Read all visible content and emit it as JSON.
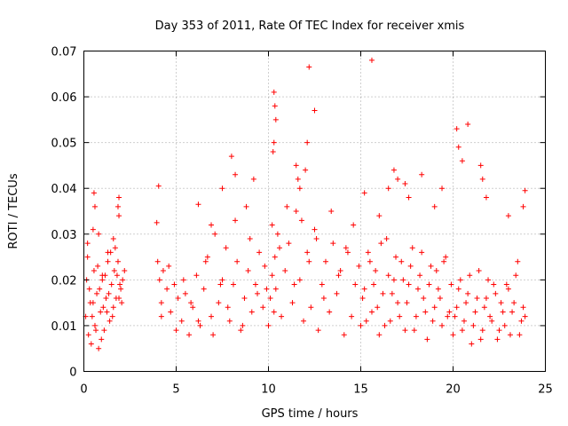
{
  "chart_data": {
    "type": "scatter",
    "title": "Day 353 of 2011, Rate Of TEC Index for receiver xmis",
    "xlabel": "GPS time / hours",
    "ylabel": "ROTI / TECUs",
    "xlim": [
      0,
      25
    ],
    "ylim": [
      0,
      0.07
    ],
    "x_ticks": [
      0,
      5,
      10,
      15,
      20,
      25
    ],
    "y_ticks": [
      0,
      0.01,
      0.02,
      0.03,
      0.04,
      0.05,
      0.06,
      0.07
    ],
    "x_tick_labels": [
      "0",
      "5",
      "10",
      "15",
      "20",
      "25"
    ],
    "y_tick_labels": [
      "0",
      "0.01",
      "0.02",
      "0.03",
      "0.04",
      "0.05",
      "0.06",
      "0.07"
    ],
    "grid": true,
    "marker": "+",
    "color": "#ff0000",
    "series": [
      {
        "x": [
          0.1,
          0.2,
          0.25,
          0.3,
          0.4,
          0.5,
          0.55,
          0.6,
          0.7,
          0.8,
          0.9,
          1.0,
          1.1,
          1.2,
          1.3,
          1.4,
          1.5,
          1.6,
          1.7,
          1.8,
          1.9,
          2.0,
          2.1,
          2.2,
          0.15,
          0.35,
          0.45,
          0.65,
          0.75,
          0.85,
          0.95,
          1.05,
          1.15,
          1.25,
          1.35,
          1.45,
          1.55,
          1.65,
          1.75,
          1.85,
          1.95,
          2.05,
          0.2,
          0.5,
          0.8,
          1.0,
          1.3,
          1.6,
          1.9,
          0.6,
          0.55,
          1.85,
          1.9,
          4.0,
          4.1,
          4.2,
          4.3,
          4.5,
          4.7,
          4.9,
          5.1,
          5.3,
          5.5,
          5.7,
          5.9,
          6.1,
          6.3,
          6.5,
          6.7,
          6.9,
          7.1,
          7.3,
          7.5,
          7.7,
          7.9,
          8.1,
          8.3,
          8.5,
          8.7,
          8.9,
          9.1,
          9.3,
          9.5,
          9.7,
          9.9,
          4.2,
          4.6,
          5.0,
          5.4,
          5.8,
          6.2,
          6.6,
          7.0,
          7.4,
          7.8,
          8.2,
          8.6,
          9.0,
          9.4,
          9.8,
          4.05,
          3.95,
          6.2,
          6.9,
          7.5,
          8.0,
          8.2,
          8.8,
          9.2,
          10.0,
          10.1,
          10.2,
          10.3,
          10.35,
          10.4,
          10.5,
          10.7,
          10.9,
          11.1,
          11.3,
          11.5,
          11.7,
          11.9,
          12.1,
          12.3,
          12.5,
          12.7,
          12.9,
          13.1,
          13.3,
          13.5,
          13.7,
          13.9,
          14.1,
          14.3,
          14.5,
          14.7,
          14.9,
          10.3,
          10.35,
          10.4,
          10.3,
          10.25,
          12.2,
          12.5,
          12.1,
          12.0,
          11.5,
          11.6,
          11.7,
          10.2,
          10.6,
          11.0,
          11.4,
          11.8,
          12.2,
          12.6,
          13.0,
          13.4,
          13.8,
          14.2,
          14.6,
          15.0,
          15.2,
          15.4,
          15.6,
          15.8,
          16.0,
          16.2,
          16.4,
          16.6,
          16.8,
          17.0,
          17.2,
          17.4,
          17.6,
          17.8,
          18.0,
          18.2,
          18.4,
          18.6,
          18.8,
          19.0,
          19.2,
          19.4,
          19.6,
          19.8,
          15.1,
          15.3,
          15.5,
          15.7,
          15.9,
          16.1,
          16.3,
          16.5,
          16.7,
          16.9,
          17.1,
          17.3,
          17.5,
          17.7,
          17.9,
          18.1,
          18.3,
          18.5,
          18.7,
          18.9,
          19.1,
          19.3,
          19.5,
          19.7,
          19.9,
          15.6,
          16.5,
          17.0,
          17.6,
          18.3,
          19.0,
          19.4,
          15.2,
          16.0,
          16.8,
          17.4,
          20.0,
          20.2,
          20.4,
          20.6,
          20.8,
          21.0,
          21.2,
          21.4,
          21.6,
          21.8,
          22.0,
          22.2,
          22.4,
          22.6,
          22.8,
          23.0,
          23.2,
          23.4,
          23.6,
          23.8,
          23.9,
          20.1,
          20.3,
          20.5,
          20.7,
          20.9,
          21.1,
          21.3,
          21.5,
          21.7,
          21.9,
          22.1,
          22.3,
          22.5,
          22.7,
          22.9,
          23.1,
          23.3,
          23.5,
          23.7,
          20.2,
          20.3,
          20.8,
          20.5,
          21.5,
          21.6,
          21.8,
          23.9,
          23.8,
          23.0
        ],
        "y": [
          0.012,
          0.025,
          0.008,
          0.018,
          0.006,
          0.015,
          0.022,
          0.01,
          0.017,
          0.005,
          0.013,
          0.02,
          0.009,
          0.016,
          0.024,
          0.011,
          0.019,
          0.014,
          0.027,
          0.021,
          0.016,
          0.018,
          0.02,
          0.022,
          0.02,
          0.015,
          0.012,
          0.009,
          0.023,
          0.018,
          0.007,
          0.014,
          0.021,
          0.013,
          0.017,
          0.026,
          0.012,
          0.022,
          0.016,
          0.024,
          0.019,
          0.015,
          0.028,
          0.031,
          0.03,
          0.021,
          0.026,
          0.029,
          0.034,
          0.036,
          0.039,
          0.036,
          0.038,
          0.024,
          0.02,
          0.015,
          0.022,
          0.018,
          0.013,
          0.019,
          0.016,
          0.011,
          0.017,
          0.008,
          0.014,
          0.021,
          0.01,
          0.018,
          0.025,
          0.012,
          0.03,
          0.015,
          0.02,
          0.027,
          0.011,
          0.019,
          0.024,
          0.009,
          0.016,
          0.022,
          0.013,
          0.019,
          0.026,
          0.014,
          0.018,
          0.012,
          0.023,
          0.009,
          0.02,
          0.015,
          0.011,
          0.024,
          0.008,
          0.019,
          0.014,
          0.033,
          0.01,
          0.029,
          0.017,
          0.023,
          0.0405,
          0.0325,
          0.0365,
          0.032,
          0.04,
          0.047,
          0.043,
          0.036,
          0.042,
          0.01,
          0.016,
          0.021,
          0.013,
          0.025,
          0.018,
          0.03,
          0.012,
          0.022,
          0.028,
          0.015,
          0.035,
          0.02,
          0.011,
          0.026,
          0.014,
          0.031,
          0.009,
          0.019,
          0.024,
          0.013,
          0.028,
          0.017,
          0.022,
          0.008,
          0.026,
          0.012,
          0.019,
          0.023,
          0.061,
          0.058,
          0.055,
          0.05,
          0.048,
          0.0665,
          0.057,
          0.05,
          0.044,
          0.045,
          0.042,
          0.04,
          0.032,
          0.027,
          0.036,
          0.019,
          0.033,
          0.024,
          0.029,
          0.016,
          0.035,
          0.021,
          0.027,
          0.032,
          0.01,
          0.018,
          0.026,
          0.013,
          0.022,
          0.008,
          0.017,
          0.029,
          0.011,
          0.02,
          0.015,
          0.024,
          0.009,
          0.019,
          0.027,
          0.012,
          0.021,
          0.016,
          0.007,
          0.023,
          0.014,
          0.018,
          0.01,
          0.025,
          0.013,
          0.016,
          0.011,
          0.024,
          0.019,
          0.014,
          0.028,
          0.01,
          0.021,
          0.017,
          0.025,
          0.012,
          0.02,
          0.015,
          0.023,
          0.009,
          0.018,
          0.026,
          0.013,
          0.019,
          0.011,
          0.022,
          0.016,
          0.024,
          0.012,
          0.019,
          0.068,
          0.04,
          0.042,
          0.038,
          0.043,
          0.036,
          0.04,
          0.039,
          0.034,
          0.044,
          0.041,
          0.008,
          0.014,
          0.02,
          0.011,
          0.017,
          0.006,
          0.013,
          0.022,
          0.009,
          0.016,
          0.012,
          0.019,
          0.007,
          0.015,
          0.01,
          0.018,
          0.013,
          0.021,
          0.008,
          0.014,
          0.012,
          0.012,
          0.018,
          0.009,
          0.015,
          0.021,
          0.01,
          0.016,
          0.007,
          0.014,
          0.02,
          0.011,
          0.017,
          0.009,
          0.013,
          0.019,
          0.008,
          0.015,
          0.024,
          0.011,
          0.053,
          0.049,
          0.054,
          0.046,
          0.045,
          0.042,
          0.038,
          0.0395,
          0.036,
          0.034
        ]
      }
    ]
  }
}
